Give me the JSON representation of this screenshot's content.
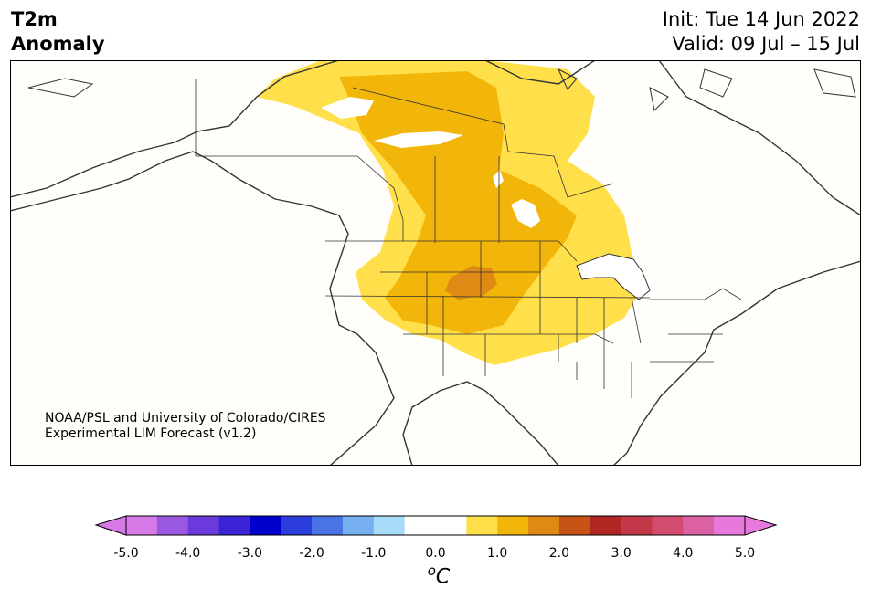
{
  "title": {
    "line1": "T2m",
    "line2": "Anomaly"
  },
  "header_right": {
    "init": "Init: Tue 14 Jun 2022",
    "valid": "Valid: 09 Jul – 15 Jul"
  },
  "credit": {
    "line1": "NOAA/PSL and University of Colorado/CIRES",
    "line2": "Experimental LIM Forecast (v1.2)"
  },
  "colorbar": {
    "unit_o": "o",
    "unit_c": "C",
    "ticks": [
      "-5.0",
      "-4.0",
      "-3.0",
      "-2.0",
      "-1.0",
      "0.0",
      "1.0",
      "2.0",
      "3.0",
      "4.0",
      "5.0"
    ],
    "colors": [
      "#d67ae8",
      "#9a57e0",
      "#6a3adc",
      "#3a23d4",
      "#0000cd",
      "#2a3ddc",
      "#4a74e6",
      "#76b0f0",
      "#a8dbf8",
      "#ffffff",
      "#ffffff",
      "#ffe04a",
      "#f2b50a",
      "#de8a14",
      "#c65416",
      "#b02622",
      "#c23848",
      "#d44c70",
      "#dc60a4",
      "#e878dc"
    ],
    "under_color": "#d67ae8",
    "over_color": "#e878dc"
  },
  "map": {
    "legend_levels": {
      "light": "0.5 to 1.0",
      "medium": "1.0 to 1.5",
      "dark": "1.5 to 2.0"
    },
    "colors": {
      "light": "#ffe04a",
      "medium": "#f2b50a",
      "dark": "#de8a14",
      "land": "#fffefb",
      "border": "#333333"
    }
  }
}
